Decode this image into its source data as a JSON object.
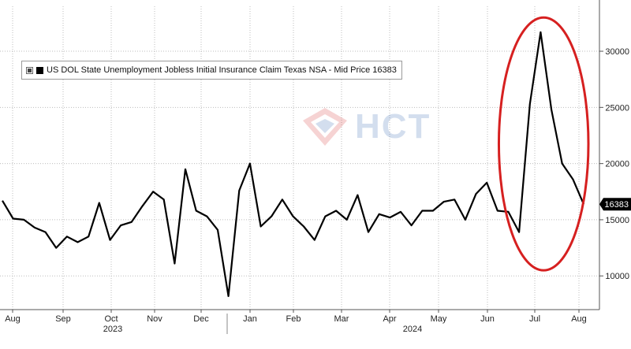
{
  "legend": {
    "label": "US DOL State Unemployment Jobless Initial Insurance Claim Texas NSA - Mid Price 16383"
  },
  "watermark": {
    "text": "HCT"
  },
  "colors": {
    "series": "#000000",
    "annotation_ellipse": "#d62020",
    "last_value_bg": "#000000",
    "grid": "#bdbdbd"
  },
  "chart_data": {
    "type": "line",
    "title": "",
    "xlabel": "",
    "ylabel": "",
    "ylim": [
      7000,
      34000
    ],
    "y_ticks": [
      10000,
      15000,
      20000,
      25000,
      30000
    ],
    "y_tick_labels": [
      "10000",
      "15000",
      "20000",
      "25000",
      "30000"
    ],
    "y_axis_side": "right",
    "grid": true,
    "legend_position": "top-left",
    "x_month_labels": [
      "Aug",
      "Sep",
      "Oct",
      "Nov",
      "Dec",
      "Jan",
      "Feb",
      "Mar",
      "Apr",
      "May",
      "Jun",
      "Jul",
      "Aug"
    ],
    "x_year_labels": [
      "2023",
      "2024"
    ],
    "last_value_label": "16383",
    "series": [
      {
        "values": [
          16700,
          15100,
          15000,
          14300,
          13900,
          12500,
          13500,
          13000,
          13500,
          16500,
          13200,
          14500,
          14800,
          16200,
          17500,
          16800,
          11100,
          19500,
          15800,
          15300,
          14100,
          8200,
          17600,
          20000,
          14400,
          15300,
          16800,
          15300,
          14400,
          13200,
          15300,
          15800,
          15000,
          17200,
          13900,
          15500,
          15200,
          15700,
          14500,
          15800,
          15800,
          16600,
          16800,
          15000,
          17300,
          18300,
          15800,
          15700,
          13900,
          25300,
          31700,
          24800,
          20000,
          18600,
          16383
        ]
      }
    ],
    "annotations": [
      {
        "type": "ellipse",
        "description": "highlight of July 2024 spike",
        "x_range_weeks": [
          47,
          54
        ],
        "y_range": [
          10500,
          33000
        ]
      }
    ]
  }
}
